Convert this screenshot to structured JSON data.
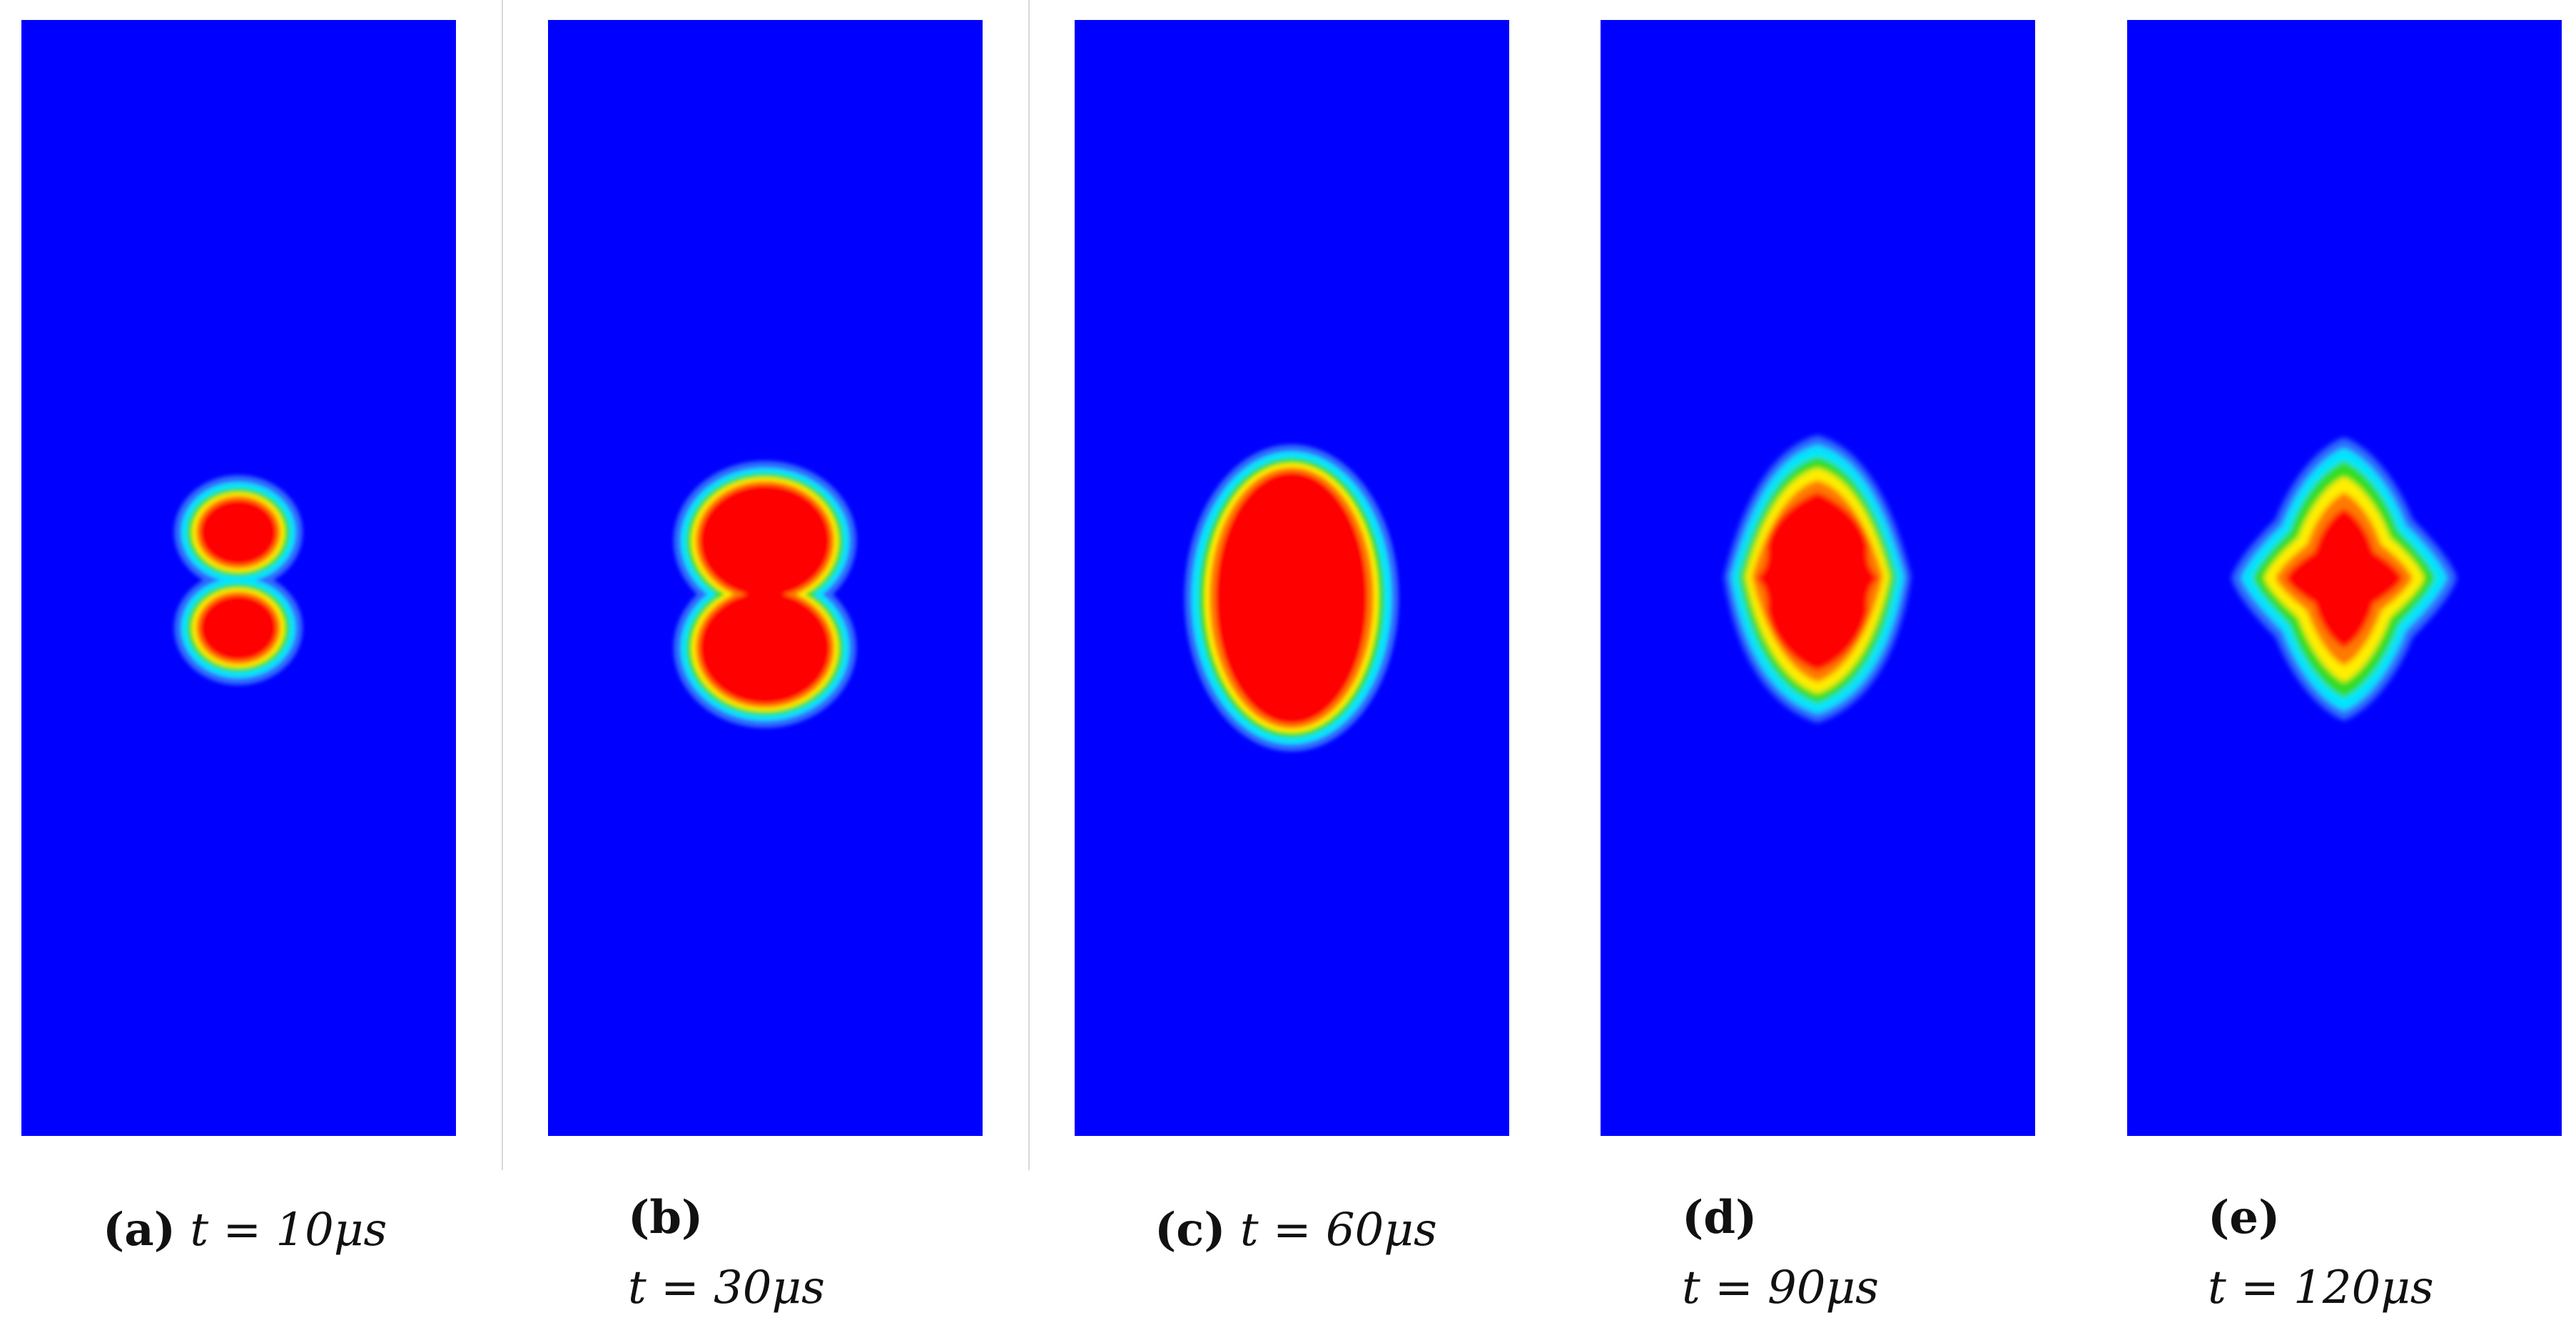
{
  "figure": {
    "colors": {
      "background": "#0000ff",
      "core": "#ff0000",
      "ring1": "#ff7a00",
      "ring2": "#ffee00",
      "ring3": "#33dd22",
      "ring4": "#00e5ff",
      "ring5": "#2f6bff"
    },
    "panels": [
      {
        "label": "(a)",
        "caption": "t = 10μs"
      },
      {
        "label": "(b)",
        "caption": "t = 30μs"
      },
      {
        "label": "(c)",
        "caption": "t = 60μs"
      },
      {
        "label": "(d)",
        "caption": "t = 90μs"
      },
      {
        "label": "(e)",
        "caption": "t = 120μs"
      }
    ]
  }
}
